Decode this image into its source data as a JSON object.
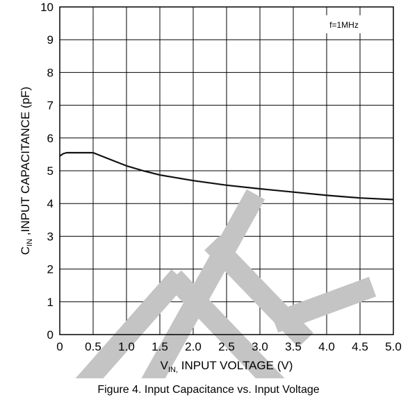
{
  "caption": "Figure 4. Input Capacitance vs. Input Voltage",
  "chart_data": {
    "type": "line",
    "title": "",
    "xlabel": {
      "main": "V",
      "sub": "IN,",
      "rest": " INPUT VOLTAGE (V)"
    },
    "ylabel": {
      "main": "C",
      "sub": "IN",
      "rest": " ,INPUT CAPACITANCE (pF)"
    },
    "xlim": [
      0,
      5
    ],
    "ylim": [
      0,
      10
    ],
    "x_ticks": [
      "0",
      "0.5",
      "1.0",
      "1.5",
      "2.0",
      "2.5",
      "3.0",
      "3.5",
      "4.0",
      "4.5",
      "5.0"
    ],
    "y_ticks": [
      "0",
      "1",
      "2",
      "3",
      "4",
      "5",
      "6",
      "7",
      "8",
      "9",
      "10"
    ],
    "grid": true,
    "annotation": "f=1MHz",
    "series": [
      {
        "x": [
          0,
          0.05,
          0.1,
          0.3,
          0.5,
          0.75,
          1.0,
          1.25,
          1.5,
          2.0,
          2.5,
          3.0,
          3.5,
          4.0,
          4.5,
          5.0
        ],
        "values": [
          5.45,
          5.52,
          5.55,
          5.55,
          5.55,
          5.35,
          5.15,
          5.0,
          4.87,
          4.7,
          4.56,
          4.45,
          4.35,
          4.25,
          4.17,
          4.12
        ],
        "color": "#111111"
      }
    ],
    "watermark_color": "#c4c4c4"
  }
}
